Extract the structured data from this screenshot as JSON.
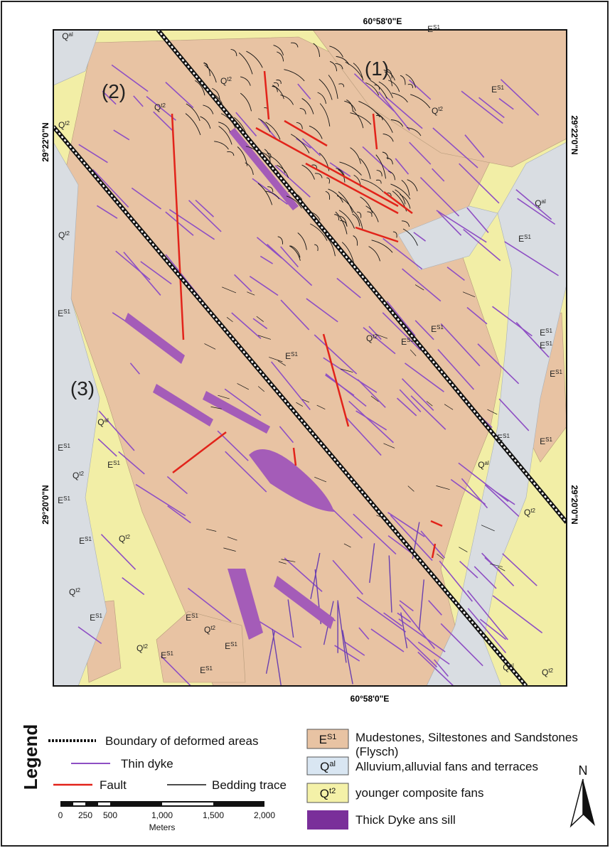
{
  "map": {
    "coordinates": {
      "top": "60°58'0\"E",
      "bottom": "60°58'0\"E",
      "left_upper": "29°22'0\"N",
      "left_lower": "29°20'0\"N",
      "right_upper": "29°22'0\"N",
      "right_lower": "29°20'0\"N"
    },
    "areas": [
      "(1)",
      "(2)",
      "(3)"
    ],
    "unit_labels": [
      {
        "base": "Q",
        "sup": "al"
      },
      {
        "base": "E",
        "sup": "S1"
      },
      {
        "base": "E",
        "sup": "S1"
      },
      {
        "base": "Q",
        "sup": "t2"
      },
      {
        "base": "Q",
        "sup": "t2"
      },
      {
        "base": "Q",
        "sup": "t2"
      },
      {
        "base": "Q",
        "sup": "t2"
      },
      {
        "base": "Q",
        "sup": "al"
      },
      {
        "base": "E",
        "sup": "S1"
      },
      {
        "base": "Q",
        "sup": "t2"
      },
      {
        "base": "E",
        "sup": "S1"
      },
      {
        "base": "Q",
        "sup": "t2"
      },
      {
        "base": "E",
        "sup": "S1"
      },
      {
        "base": "E",
        "sup": "S1"
      },
      {
        "base": "E",
        "sup": "S1"
      },
      {
        "base": "E",
        "sup": "S1"
      },
      {
        "base": "E",
        "sup": "S1"
      },
      {
        "base": "E",
        "sup": "S1"
      },
      {
        "base": "Q",
        "sup": "al"
      },
      {
        "base": "E",
        "sup": "S1"
      },
      {
        "base": "E",
        "sup": "S1"
      },
      {
        "base": "Q",
        "sup": "t2"
      },
      {
        "base": "E",
        "sup": "S1"
      },
      {
        "base": "E",
        "sup": "S1"
      },
      {
        "base": "Q",
        "sup": "t2"
      },
      {
        "base": "E",
        "sup": "S1"
      },
      {
        "base": "E",
        "sup": "S1"
      },
      {
        "base": "Q",
        "sup": "al"
      },
      {
        "base": "Q",
        "sup": "t2"
      },
      {
        "base": "Q",
        "sup": "t2"
      },
      {
        "base": "E",
        "sup": "S1"
      },
      {
        "base": "E",
        "sup": "S1"
      },
      {
        "base": "Q",
        "sup": "t2"
      },
      {
        "base": "E",
        "sup": "S1"
      },
      {
        "base": "Q",
        "sup": "t2"
      },
      {
        "base": "E",
        "sup": "S1"
      },
      {
        "base": "E",
        "sup": "S1"
      },
      {
        "base": "Q",
        "sup": "al"
      },
      {
        "base": "Q",
        "sup": "t2"
      }
    ]
  },
  "legend": {
    "title": "Legend",
    "lines": [
      "Boundary of deformed areas",
      "Thin dyke",
      "Fault",
      "Bedding trace"
    ],
    "scale_bar": {
      "ticks": [
        "0",
        "250",
        "500",
        "1,000",
        "1,500",
        "2,000"
      ],
      "unit": "Meters"
    },
    "units": [
      {
        "code": {
          "base": "E",
          "sup": "S1"
        },
        "description": "Mudestones, Siltestones and Sandstones (Flysch)"
      },
      {
        "code": {
          "base": "Q",
          "sup": "al"
        },
        "description": "Alluvium,alluvial fans and terraces"
      },
      {
        "code": {
          "base": "Q",
          "sup": "t2"
        },
        "description": "younger composite fans"
      },
      {
        "description": "Thick Dyke ans sill"
      }
    ],
    "north": "N"
  }
}
